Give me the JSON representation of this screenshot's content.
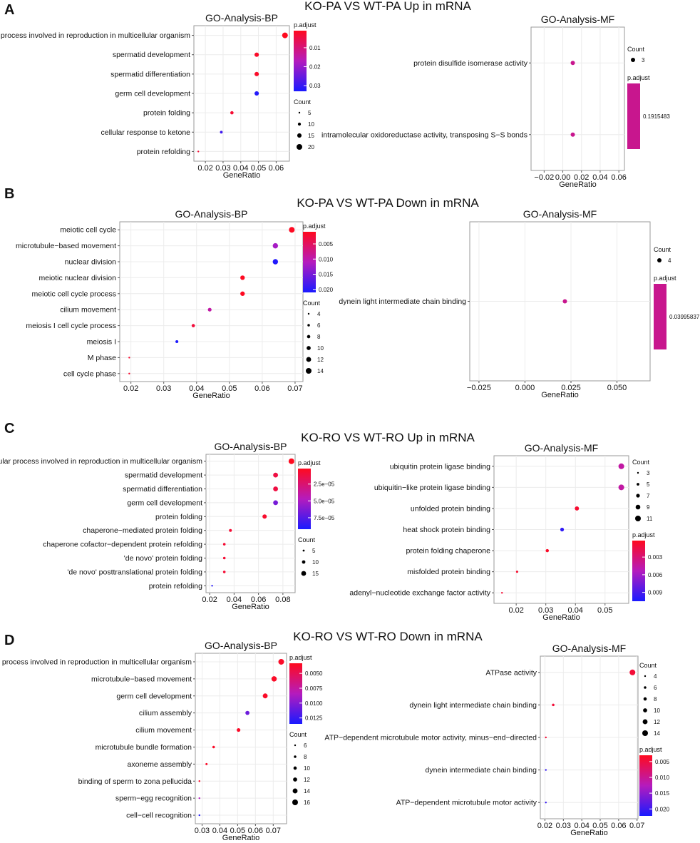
{
  "figure": {
    "panels": [
      {
        "letter": "A",
        "title": "KO-PA VS WT-PA Up in mRNA",
        "charts": [
          {
            "chart_data": {
              "type": "scatter",
              "title": "GO-Analysis-BP",
              "xlabel": "GeneRatio",
              "ylabel": "",
              "xlim": [
                0.0135,
                0.0675
              ],
              "xticks": [
                0.02,
                0.03,
                0.04,
                0.05,
                0.06
              ],
              "xtick_labels": [
                "0.02",
                "0.03",
                "0.04",
                "0.05",
                "0.06"
              ],
              "categories": [
                "cellular process involved in reproduction in multicellular organism",
                "spermatid development",
                "spermatid differentiation",
                "germ cell development",
                "protein folding",
                "cellular response to ketone",
                "protein refolding"
              ],
              "x": [
                0.065,
                0.049,
                0.049,
                0.049,
                0.035,
                0.029,
                0.016
              ],
              "size": [
                20,
                15,
                15,
                15,
                11,
                9,
                5
              ],
              "padj": [
                0.001,
                0.002,
                0.002,
                0.032,
                0.003,
                0.029,
                0.003
              ],
              "color_legend": {
                "title": "p.adjust",
                "range": [
                  0.001,
                  0.033
                ],
                "ticks": [
                  0.01,
                  0.02,
                  0.03
                ],
                "tick_labels": [
                  "0.01",
                  "0.02",
                  "0.03"
                ]
              },
              "size_legend": {
                "title": "Count",
                "values": [
                  5,
                  10,
                  15,
                  20
                ],
                "labels": [
                  "5",
                  "10",
                  "15",
                  "20"
                ],
                "range": [
                  5,
                  20
                ]
              }
            }
          },
          {
            "chart_data": {
              "type": "scatter",
              "title": "GO-Analysis-MF",
              "xlabel": "GeneRatio",
              "ylabel": "",
              "xlim": [
                -0.034,
                0.066
              ],
              "xticks": [
                -0.02,
                0.0,
                0.02,
                0.04,
                0.06
              ],
              "xtick_labels": [
                "−0.02",
                "0.00",
                "0.02",
                "0.04",
                "0.06"
              ],
              "categories": [
                "protein disulfide isomerase activity",
                "intramolecular oxidoreductase activity, transposing S−S bonds"
              ],
              "x": [
                0.0107,
                0.0107
              ],
              "size": [
                3,
                3
              ],
              "padj": [
                0.1915483,
                0.1915483
              ],
              "color_legend": {
                "title": "p.adjust",
                "single": true,
                "tick_labels": [
                  "0.1915483"
                ],
                "color": "#c8168e"
              },
              "size_legend": {
                "title": "Count",
                "values": [
                  3
                ],
                "labels": [
                  "3"
                ],
                "range": [
                  3,
                  3
                ]
              }
            }
          }
        ]
      },
      {
        "letter": "B",
        "title": "KO-PA VS WT-PA Down in mRNA",
        "charts": [
          {
            "chart_data": {
              "type": "scatter",
              "title": "GO-Analysis-BP",
              "xlabel": "GeneRatio",
              "ylabel": "",
              "xlim": [
                0.0166,
                0.0724
              ],
              "xticks": [
                0.02,
                0.03,
                0.04,
                0.05,
                0.06,
                0.07
              ],
              "xtick_labels": [
                "0.02",
                "0.03",
                "0.04",
                "0.05",
                "0.06",
                "0.07"
              ],
              "categories": [
                "meiotic cell cycle",
                "microtubule−based movement",
                "nuclear division",
                "meiotic nuclear division",
                "meiotic cell cycle process",
                "cilium movement",
                "meiosis I cell cycle process",
                "meiosis I",
                "M phase",
                "cell cycle phase"
              ],
              "x": [
                0.069,
                0.064,
                0.064,
                0.054,
                0.054,
                0.044,
                0.039,
                0.034,
                0.0195,
                0.0195
              ],
              "size": [
                14,
                13,
                13,
                11,
                11,
                9,
                8,
                7,
                4,
                4
              ],
              "padj": [
                0.0012,
                0.012,
                0.0205,
                0.0012,
                0.0012,
                0.0095,
                0.0028,
                0.0208,
                0.002,
                0.002
              ],
              "color_legend": {
                "title": "p.adjust",
                "range": [
                  0.001,
                  0.021
                ],
                "ticks": [
                  0.005,
                  0.01,
                  0.015,
                  0.02
                ],
                "tick_labels": [
                  "0.005",
                  "0.010",
                  "0.015",
                  "0.020"
                ]
              },
              "size_legend": {
                "title": "Count",
                "values": [
                  4,
                  6,
                  8,
                  10,
                  12,
                  14
                ],
                "labels": [
                  "4",
                  "6",
                  "8",
                  "10",
                  "12",
                  "14"
                ],
                "range": [
                  4,
                  14
                ]
              }
            }
          },
          {
            "chart_data": {
              "type": "scatter",
              "title": "GO-Analysis-MF",
              "xlabel": "GeneRatio",
              "ylabel": "",
              "xlim": [
                -0.03,
                0.068
              ],
              "xticks": [
                -0.025,
                0.0,
                0.025,
                0.05
              ],
              "xtick_labels": [
                "−0.025",
                "0.000",
                "0.025",
                "0.050"
              ],
              "categories": [
                "dynein light intermediate chain binding"
              ],
              "x": [
                0.0217
              ],
              "size": [
                4
              ],
              "padj": [
                0.03995837
              ],
              "color_legend": {
                "title": "p.adjust",
                "single": true,
                "tick_labels": [
                  "0.03995837"
                ],
                "color": "#c8168e"
              },
              "size_legend": {
                "title": "Count",
                "values": [
                  4
                ],
                "labels": [
                  "4"
                ],
                "range": [
                  4,
                  4
                ]
              }
            }
          }
        ]
      },
      {
        "letter": "C",
        "title": "KO-RO VS WT-RO Up in mRNA",
        "charts": [
          {
            "chart_data": {
              "type": "scatter",
              "title": "GO-Analysis-BP",
              "xlabel": "GeneRatio",
              "ylabel": "",
              "xlim": [
                0.017,
                0.09
              ],
              "xticks": [
                0.02,
                0.04,
                0.06,
                0.08
              ],
              "xtick_labels": [
                "0.02",
                "0.04",
                "0.06",
                "0.08"
              ],
              "categories": [
                "cellular process involved in reproduction in multicellular organism",
                "spermatid development",
                "spermatid differentiation",
                "germ cell development",
                "protein folding",
                "chaperone−mediated protein folding",
                "chaperone cofactor−dependent protein refolding",
                "'de novo' protein folding",
                "'de novo' posttranslational protein folding",
                "protein refolding"
              ],
              "x": [
                0.087,
                0.074,
                0.074,
                0.074,
                0.065,
                0.037,
                0.032,
                0.032,
                0.032,
                0.022
              ],
              "size": [
                18,
                15,
                15,
                15,
                13,
                8,
                7,
                7,
                7,
                4
              ],
              "padj": [
                2e-06,
                1.2e-05,
                1.2e-05,
                6.5e-05,
                6e-06,
                8e-06,
                8e-06,
                8e-06,
                8e-06,
                8.8e-05
              ],
              "color_legend": {
                "title": "p.adjust",
                "range": [
                  2e-06,
                  9.2e-05
                ],
                "ticks": [
                  2.5e-05,
                  5e-05,
                  7.5e-05
                ],
                "tick_labels": [
                  "2.5e−05",
                  "5.0e−05",
                  "7.5e−05"
                ]
              },
              "size_legend": {
                "title": "Count",
                "values": [
                  5,
                  10,
                  15
                ],
                "labels": [
                  "5",
                  "10",
                  "15"
                ],
                "range": [
                  4,
                  18
                ]
              }
            }
          },
          {
            "chart_data": {
              "type": "scatter",
              "title": "GO-Analysis-MF",
              "xlabel": "GeneRatio",
              "ylabel": "",
              "xlim": [
                0.0125,
                0.058
              ],
              "xticks": [
                0.02,
                0.03,
                0.04,
                0.05
              ],
              "xtick_labels": [
                "0.02",
                "0.03",
                "0.04",
                "0.05"
              ],
              "categories": [
                "ubiquitin protein ligase binding",
                "ubiquitin−like protein ligase binding",
                "unfolded protein binding",
                "heat shock protein binding",
                "protein folding chaperone",
                "misfolded protein binding",
                "adenyl−nucleotide exchange factor activity"
              ],
              "x": [
                0.0555,
                0.0555,
                0.0405,
                0.0355,
                0.0305,
                0.0203,
                0.0152
              ],
              "size": [
                11,
                11,
                8,
                7,
                6,
                4,
                3
              ],
              "padj": [
                0.0045,
                0.0045,
                0.0008,
                0.0098,
                0.0005,
                0.0007,
                0.0009
              ],
              "color_legend": {
                "title": "p.adjust",
                "range": [
                  0.0002,
                  0.0105
                ],
                "ticks": [
                  0.003,
                  0.006,
                  0.009
                ],
                "tick_labels": [
                  "0.003",
                  "0.006",
                  "0.009"
                ]
              },
              "size_legend": {
                "title": "Count",
                "values": [
                  3,
                  5,
                  7,
                  9,
                  11
                ],
                "labels": [
                  "3",
                  "5",
                  "7",
                  "9",
                  "11"
                ],
                "range": [
                  3,
                  11
                ]
              }
            }
          }
        ]
      },
      {
        "letter": "D",
        "title": "KO-RO VS WT-RO Down in mRNA",
        "charts": [
          {
            "chart_data": {
              "type": "scatter",
              "title": "GO-Analysis-BP",
              "xlabel": "GeneRatio",
              "ylabel": "",
              "xlim": [
                0.0262,
                0.0775
              ],
              "xticks": [
                0.03,
                0.04,
                0.05,
                0.06,
                0.07
              ],
              "xtick_labels": [
                "0.03",
                "0.04",
                "0.05",
                "0.06",
                "0.07"
              ],
              "categories": [
                "cellular process involved in reproduction in multicellular organism",
                "microtubule−based movement",
                "germ cell development",
                "cilium assembly",
                "cilium movement",
                "microtubule bundle formation",
                "axoneme assembly",
                "binding of sperm to zona pellucida",
                "sperm−egg recognition",
                "cell−cell recognition"
              ],
              "x": [
                0.0745,
                0.0705,
                0.0655,
                0.0555,
                0.0505,
                0.0365,
                0.0325,
                0.0285,
                0.0285,
                0.0285
              ],
              "size": [
                16,
                15,
                14,
                12,
                11,
                8,
                7,
                6,
                6,
                6
              ],
              "padj": [
                0.0036,
                0.0036,
                0.0036,
                0.0108,
                0.0036,
                0.0036,
                0.0036,
                0.0036,
                0.0085,
                0.0132
              ],
              "color_legend": {
                "title": "p.adjust",
                "range": [
                  0.0033,
                  0.0135
                ],
                "ticks": [
                  0.005,
                  0.0075,
                  0.01,
                  0.0125
                ],
                "tick_labels": [
                  "0.0050",
                  "0.0075",
                  "0.0100",
                  "0.0125"
                ]
              },
              "size_legend": {
                "title": "Count",
                "values": [
                  6,
                  8,
                  10,
                  12,
                  14,
                  16
                ],
                "labels": [
                  "6",
                  "8",
                  "10",
                  "12",
                  "14",
                  "16"
                ],
                "range": [
                  6,
                  16
                ]
              }
            }
          },
          {
            "chart_data": {
              "type": "scatter",
              "title": "GO-Analysis-MF",
              "xlabel": "GeneRatio",
              "ylabel": "",
              "xlim": [
                0.0175,
                0.0705
              ],
              "xticks": [
                0.02,
                0.03,
                0.04,
                0.05,
                0.06,
                0.07
              ],
              "xtick_labels": [
                "0.02",
                "0.03",
                "0.04",
                "0.05",
                "0.06",
                "0.07"
              ],
              "categories": [
                "ATPase activity",
                "dynein light intermediate chain binding",
                "ATP−dependent microtubule motor activity, minus−end−directed",
                "dynein intermediate chain binding",
                "ATP−dependent microtubule motor activity"
              ],
              "x": [
                0.0675,
                0.0245,
                0.0205,
                0.0205,
                0.0205
              ],
              "size": [
                14,
                6,
                4,
                4,
                4
              ],
              "padj": [
                0.0045,
                0.0045,
                0.0045,
                0.0205,
                0.0205
              ],
              "color_legend": {
                "title": "p.adjust",
                "range": [
                  0.003,
                  0.0222
                ],
                "ticks": [
                  0.005,
                  0.01,
                  0.015,
                  0.02
                ],
                "tick_labels": [
                  "0.005",
                  "0.010",
                  "0.015",
                  "0.020"
                ]
              },
              "size_legend": {
                "title": "Count",
                "values": [
                  4,
                  6,
                  8,
                  10,
                  12,
                  14
                ],
                "labels": [
                  "4",
                  "6",
                  "8",
                  "10",
                  "12",
                  "14"
                ],
                "range": [
                  4,
                  14
                ]
              }
            }
          }
        ]
      }
    ]
  }
}
